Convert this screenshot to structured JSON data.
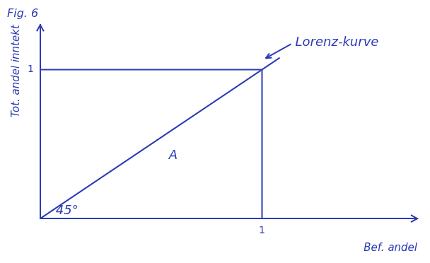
{
  "chart_data": {
    "type": "line",
    "title": "Fig. 6",
    "x_label": "Bef. andel",
    "y_label": "Tot. andel inntekt",
    "xlim": [
      0,
      1.7
    ],
    "ylim": [
      0,
      1.3
    ],
    "xticks": [
      1
    ],
    "yticks": [
      1
    ],
    "grid": false,
    "series": [
      {
        "x": [
          0,
          1.08
        ],
        "values": [
          0,
          1.08
        ],
        "color": "#2b3bb5"
      },
      {
        "x": [
          0,
          1
        ],
        "values": [
          1,
          1
        ],
        "color": "#2b3bb5"
      },
      {
        "x": [
          0,
          1,
          1
        ],
        "values": [
          0,
          0,
          1
        ],
        "color": "#2b3bb5"
      }
    ],
    "annotations": [
      {
        "text": "Lorenz-kurve",
        "x": 1.15,
        "y": 1.18,
        "arrow": true
      },
      {
        "text": "A",
        "x": 0.58,
        "y": 0.42
      },
      {
        "text": "45°",
        "x": 0.07,
        "y": 0.05
      }
    ]
  }
}
